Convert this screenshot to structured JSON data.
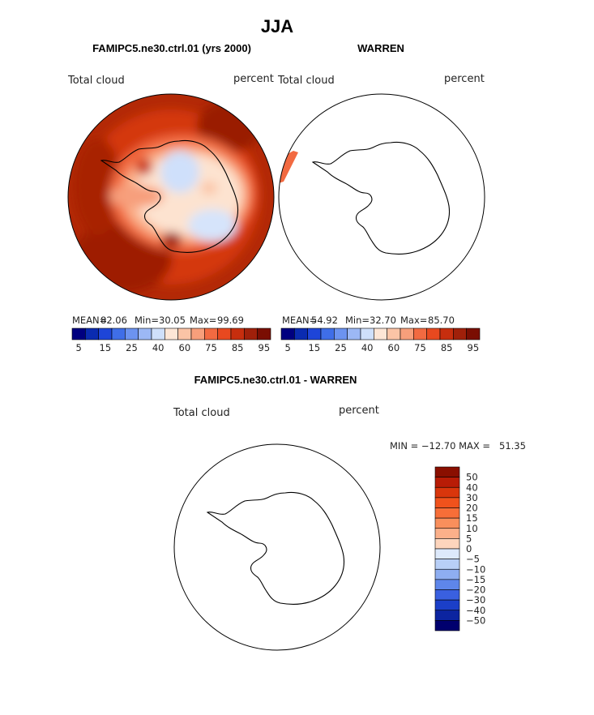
{
  "chart_data": [
    {
      "type": "polar-map",
      "title": "FAMIPC5.ne30.ctrl.01 (yrs 2000)",
      "variable": "Total cloud",
      "units": "percent",
      "mean_label": "MEAN=",
      "mean": "82.06",
      "min_label": "Min=",
      "min": "30.05",
      "max_label": "Max=",
      "max": "99.69",
      "colorbar_ticks": [
        "5",
        "15",
        "25",
        "40",
        "60",
        "75",
        "85",
        "95"
      ],
      "colorbar_colors": [
        "#000080",
        "#0a2bb0",
        "#1e45d8",
        "#3f6ee8",
        "#6c93f0",
        "#9cb8f5",
        "#cfe0fb",
        "#fde6d6",
        "#fbc4a6",
        "#f79f7b",
        "#f26a41",
        "#e8491f",
        "#c72e0e",
        "#a0200a",
        "#7a0e02"
      ]
    },
    {
      "type": "polar-map",
      "title": "WARREN",
      "variable": "Total cloud",
      "units": "percent",
      "mean_label": "MEAN=",
      "mean": "54.92",
      "min_label": "Min=",
      "min": "32.70",
      "max_label": "Max=",
      "max": "85.70",
      "colorbar_ticks": [
        "5",
        "15",
        "25",
        "40",
        "60",
        "75",
        "85",
        "95"
      ],
      "colorbar_colors": [
        "#000080",
        "#0a2bb0",
        "#1e45d8",
        "#3f6ee8",
        "#6c93f0",
        "#9cb8f5",
        "#cfe0fb",
        "#fde6d6",
        "#fbc4a6",
        "#f79f7b",
        "#f26a41",
        "#e8491f",
        "#c72e0e",
        "#a0200a",
        "#7a0e02"
      ]
    },
    {
      "type": "polar-map",
      "title": "FAMIPC5.ne30.ctrl.01 - WARREN",
      "variable": "Total cloud",
      "units": "percent",
      "min_max_label": "MIN = −12.70 MAX =   51.35",
      "colorbar_ticks": [
        "50",
        "40",
        "30",
        "20",
        "15",
        "10",
        "5",
        "0",
        "−5",
        "−10",
        "−15",
        "−20",
        "−30",
        "−40",
        "−50"
      ],
      "colorbar_colors": [
        "#8a0f00",
        "#b81c06",
        "#d9360c",
        "#f0521c",
        "#f76e38",
        "#f98f5c",
        "#fbb08a",
        "#fdd5bd",
        "#dde9fb",
        "#b8cff7",
        "#8eaef1",
        "#5e86ea",
        "#3a60e0",
        "#1b3fc8",
        "#0c24a0",
        "#00006e"
      ]
    }
  ],
  "header": {
    "season": "JJA"
  },
  "colors": {
    "continent_line": "#000000",
    "map_border": "#000000"
  }
}
